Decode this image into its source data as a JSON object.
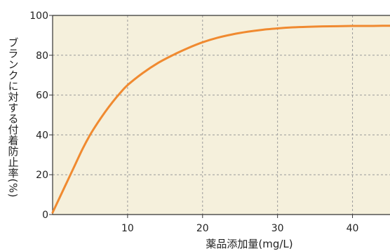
{
  "colors": {
    "plot_bg": "#f5f0dc",
    "curve": "#f08a30",
    "grid": "#9a9a9a",
    "axis": "#333333",
    "text": "#222222"
  },
  "chart_data": {
    "type": "line",
    "title": "",
    "xlabel": "薬品添加量(mg/L)",
    "ylabel": "ブランクに対する付着防止率(%)",
    "xlim": [
      0,
      45
    ],
    "ylim": [
      0,
      100
    ],
    "xticks": [
      10,
      20,
      30,
      40
    ],
    "yticks": [
      0,
      20,
      40,
      60,
      80,
      100
    ],
    "grid": true,
    "series": [
      {
        "x": [
          0,
          1,
          2,
          3,
          4,
          5,
          6,
          7,
          8,
          9,
          10,
          12,
          14,
          16,
          18,
          20,
          22,
          24,
          26,
          28,
          30,
          32,
          34,
          36,
          38,
          40,
          42,
          44,
          45
        ],
        "y": [
          1,
          9,
          17,
          25,
          33,
          40,
          46,
          51.5,
          56.5,
          61,
          65,
          71,
          76,
          80,
          83.5,
          86.5,
          88.8,
          90.5,
          91.8,
          92.8,
          93.5,
          94,
          94.3,
          94.5,
          94.6,
          94.7,
          94.7,
          94.8,
          94.8
        ]
      }
    ]
  }
}
